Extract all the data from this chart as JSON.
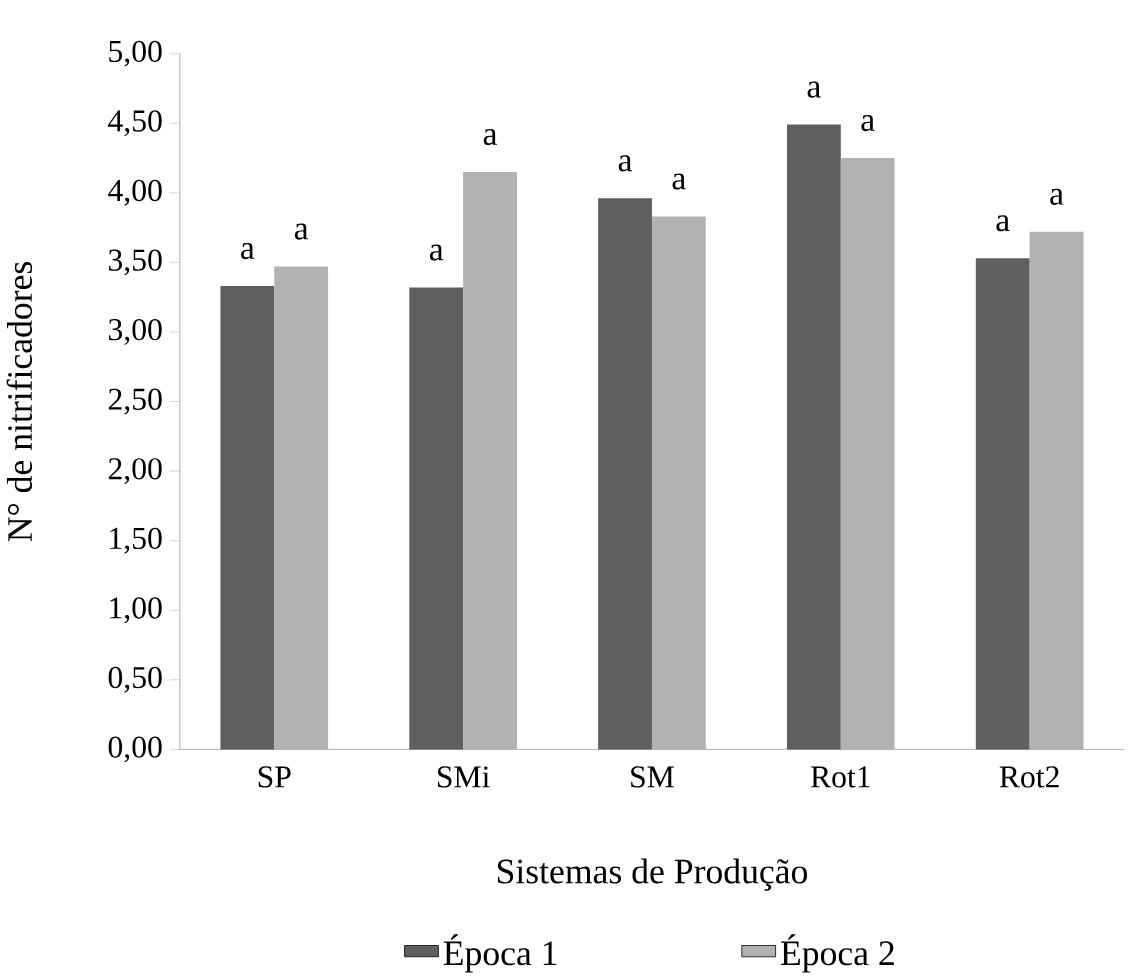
{
  "chart_data": {
    "type": "bar",
    "xlabel": "Sistemas de Produção",
    "ylabel": "N° de nitrificadores",
    "categories": [
      "SP",
      "SMi",
      "SM",
      "Rot1",
      "Rot2"
    ],
    "series": [
      {
        "name": "Época 1",
        "color": "#5f5f5f",
        "values": [
          3.33,
          3.32,
          3.96,
          4.49,
          3.53
        ],
        "value_labels": [
          "a",
          "a",
          "a",
          "a",
          "a"
        ]
      },
      {
        "name": "Época 2",
        "color": "#b2b2b2",
        "values": [
          3.47,
          4.15,
          3.83,
          4.25,
          3.72
        ],
        "value_labels": [
          "a",
          "a",
          "a",
          "a",
          "a"
        ]
      }
    ],
    "ylim": [
      0,
      5
    ],
    "yticks": [
      {
        "value": 0,
        "label": "0,00"
      },
      {
        "value": 0.5,
        "label": "0,50"
      },
      {
        "value": 1,
        "label": "1,00"
      },
      {
        "value": 1.5,
        "label": "1,50"
      },
      {
        "value": 2,
        "label": "2,00"
      },
      {
        "value": 2.5,
        "label": "2,50"
      },
      {
        "value": 3,
        "label": "3,00"
      },
      {
        "value": 3.5,
        "label": "3,50"
      },
      {
        "value": 4,
        "label": "4,00"
      },
      {
        "value": 4.5,
        "label": "4,50"
      },
      {
        "value": 5,
        "label": "5,00"
      }
    ],
    "grid": false,
    "legend": "bottom"
  }
}
